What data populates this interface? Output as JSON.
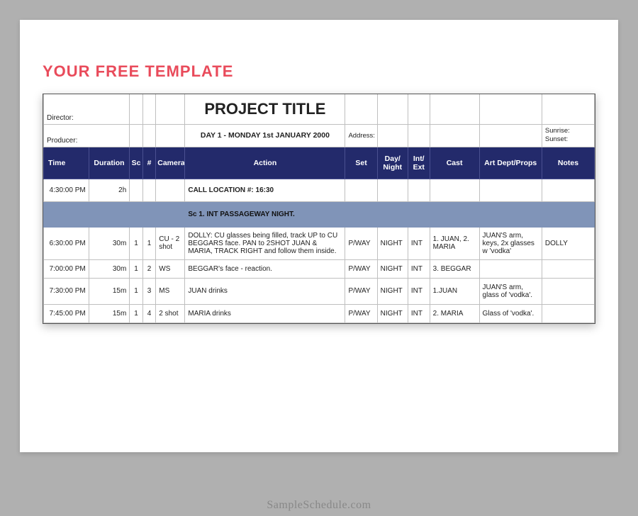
{
  "heading": "YOUR FREE TEMPLATE",
  "project_title": "PROJECT TITLE",
  "labels": {
    "director": "Director:",
    "producer": "Producer:",
    "address": "Address:",
    "sunrise": "Sunrise:",
    "sunset": "Sunset:"
  },
  "day_line": "DAY 1 - MONDAY 1st JANUARY 2000",
  "columns": {
    "time": "Time",
    "duration": "Duration",
    "sc": "Sc",
    "num": "#",
    "camera": "Camera",
    "action": "Action",
    "set": "Set",
    "day_night": "Day/ Night",
    "int_ext": "Int/ Ext",
    "cast": "Cast",
    "art": "Art Dept/Props",
    "notes": "Notes"
  },
  "call_row": {
    "time": "4:30:00 PM",
    "duration": "2h",
    "action": "CALL LOCATION #: 16:30"
  },
  "scene_band": "Sc 1. INT PASSAGEWAY NIGHT.",
  "shots": [
    {
      "time": "6:30:00 PM",
      "duration": "30m",
      "sc": "1",
      "num": "1",
      "camera": "CU - 2 shot",
      "action": "DOLLY: CU glasses being filled, track UP to CU BEGGARS face. PAN to 2SHOT JUAN & MARIA, TRACK RIGHT and follow them inside.",
      "set": "P/WAY",
      "day_night": "NIGHT",
      "int_ext": "INT",
      "cast": "1. JUAN, 2. MARIA",
      "art": "JUAN'S arm, keys, 2x glasses w 'vodka'",
      "notes": "DOLLY"
    },
    {
      "time": "7:00:00 PM",
      "duration": "30m",
      "sc": "1",
      "num": "2",
      "camera": "WS",
      "action": "BEGGAR's face - reaction.",
      "set": "P/WAY",
      "day_night": "NIGHT",
      "int_ext": "INT",
      "cast": "3. BEGGAR",
      "art": "",
      "notes": ""
    },
    {
      "time": "7:30:00 PM",
      "duration": "15m",
      "sc": "1",
      "num": "3",
      "camera": "MS",
      "action": "JUAN drinks",
      "set": "P/WAY",
      "day_night": "NIGHT",
      "int_ext": "INT",
      "cast": "1.JUAN",
      "art": "JUAN'S arm, glass of 'vodka'.",
      "notes": ""
    },
    {
      "time": "7:45:00 PM",
      "duration": "15m",
      "sc": "1",
      "num": "4",
      "camera": "2 shot",
      "action": "MARIA drinks",
      "set": "P/WAY",
      "day_night": "NIGHT",
      "int_ext": "INT",
      "cast": "2. MARIA",
      "art": "Glass of 'vodka'.",
      "notes": ""
    }
  ],
  "watermark": "SampleSchedule.com",
  "colors": {
    "page_bg": "#b0b0b0",
    "header_bg": "#232a6b",
    "scene_band_bg": "#8094b8",
    "heading_color": "#e94b5b",
    "border_color": "#bfbfbf"
  }
}
